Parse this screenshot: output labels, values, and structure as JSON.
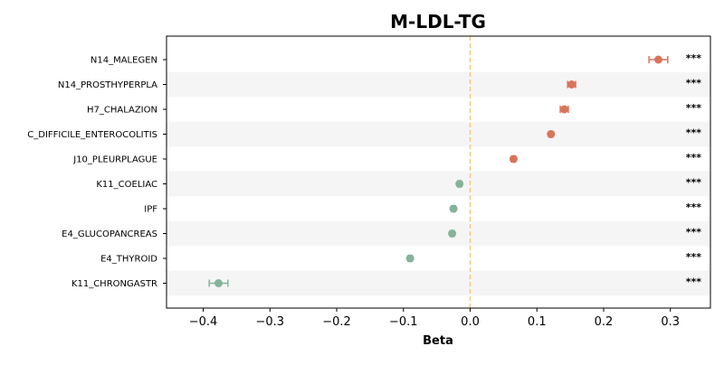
{
  "chart_data": {
    "type": "forest",
    "title": "M-LDL-TG",
    "xlabel": "Beta",
    "ylabel": "",
    "xlim": [
      -0.455,
      0.36
    ],
    "xticks": [
      -0.4,
      -0.3,
      -0.2,
      -0.1,
      0.0,
      0.1,
      0.2,
      0.3
    ],
    "xtick_labels": [
      "−0.4",
      "−0.3",
      "−0.2",
      "−0.1",
      "0.0",
      "0.1",
      "0.2",
      "0.3"
    ],
    "reference_line": 0,
    "reference_line_style": "dashed",
    "colors": {
      "positive": "#d9745c",
      "negative": "#85b39a",
      "reference": "#f5c97a",
      "band": "#f5f5f5"
    },
    "series": [
      {
        "label": "N14_MALEGEN",
        "beta": 0.282,
        "ci_low": 0.268,
        "ci_high": 0.296,
        "significance": "***"
      },
      {
        "label": "N14_PROSTHYPERPLA",
        "beta": 0.152,
        "ci_low": 0.146,
        "ci_high": 0.158,
        "significance": "***"
      },
      {
        "label": "H7_CHALAZION",
        "beta": 0.141,
        "ci_low": 0.135,
        "ci_high": 0.147,
        "significance": "***"
      },
      {
        "label": "C_DIFFICILE_ENTEROCOLITIS",
        "beta": 0.121,
        "ci_low": 0.118,
        "ci_high": 0.124,
        "significance": "***"
      },
      {
        "label": "J10_PLEURPLAGUE",
        "beta": 0.065,
        "ci_low": 0.062,
        "ci_high": 0.068,
        "significance": "***"
      },
      {
        "label": "K11_COELIAC",
        "beta": -0.016,
        "ci_low": -0.019,
        "ci_high": -0.013,
        "significance": "***"
      },
      {
        "label": "IPF",
        "beta": -0.025,
        "ci_low": -0.028,
        "ci_high": -0.022,
        "significance": "***"
      },
      {
        "label": "E4_GLUCOPANCREAS",
        "beta": -0.027,
        "ci_low": -0.03,
        "ci_high": -0.024,
        "significance": "***"
      },
      {
        "label": "E4_THYROID",
        "beta": -0.09,
        "ci_low": -0.093,
        "ci_high": -0.087,
        "significance": "***"
      },
      {
        "label": "K11_CHRONGASTR",
        "beta": -0.377,
        "ci_low": -0.391,
        "ci_high": -0.363,
        "significance": "***"
      }
    ]
  }
}
